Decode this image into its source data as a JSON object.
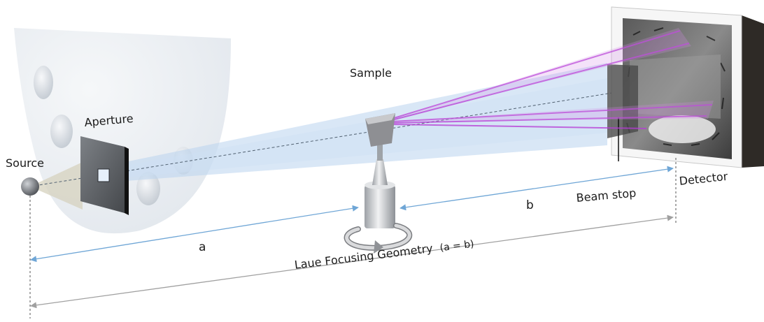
{
  "labels": {
    "source": "Source",
    "aperture": "Aperture",
    "sample": "Sample",
    "detector": "Detector",
    "beam_stop": "Beam stop",
    "distance_a": "a",
    "distance_b": "b",
    "geometry_title": "Laue Focusing Geometry",
    "geometry_condition": "(a = b)"
  },
  "colors": {
    "beam": "#b9d3ee",
    "diffracted_beam": "#b73bd6",
    "dimension_line_blue": "#6fa6d6",
    "dimension_line_gray": "#a0a0a0",
    "housing": "#e6ebf0"
  }
}
